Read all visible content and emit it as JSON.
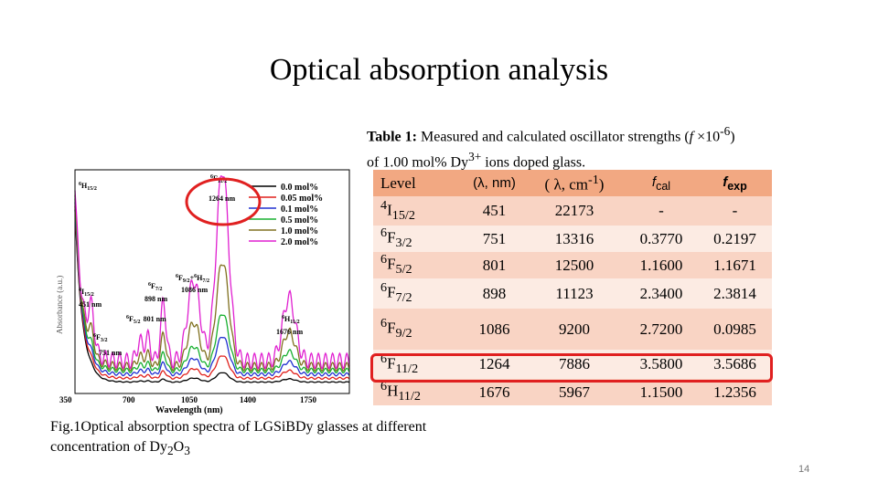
{
  "slide": {
    "title": "Optical absorption analysis",
    "page_number": "14"
  },
  "table": {
    "caption_bold": "Table 1:",
    "caption_rest": " Measured and calculated oscillator strengths (",
    "caption_f": "f",
    "caption_times": " ×10",
    "caption_exp": "-6",
    "caption_close": ")",
    "caption_line2a": "of 1.00 mol% Dy",
    "caption_line2sup": "3+",
    "caption_line2b": " ions doped glass.",
    "headers": {
      "level": "Level",
      "lambda_nm": "(λ, nm)",
      "lambda_cm_a": "( λ, cm",
      "lambda_cm_sup": "-1",
      "lambda_cm_b": ")",
      "fcal_f": "f",
      "fcal_sub": "cal",
      "fexp_f": "f",
      "fexp_sub": "exp"
    },
    "rows": [
      {
        "sup": "4",
        "term": "I",
        "sub": "15/2",
        "nm": "451",
        "cm": "22173",
        "fcal": "-",
        "fexp": "-"
      },
      {
        "sup": "6",
        "term": "F",
        "sub": "3/2",
        "nm": "751",
        "cm": "13316",
        "fcal": "0.3770",
        "fexp": "0.2197"
      },
      {
        "sup": "6",
        "term": "F",
        "sub": "5/2",
        "nm": "801",
        "cm": "12500",
        "fcal": "1.1600",
        "fexp": "1.1671"
      },
      {
        "sup": "6",
        "term": "F",
        "sub": "7/2",
        "nm": "898",
        "cm": "11123",
        "fcal": "2.3400",
        "fexp": "2.3814"
      },
      {
        "sup": "6",
        "term": "F",
        "sub": "9/2",
        "nm": "1086",
        "cm": "9200",
        "fcal": "2.7200",
        "fexp": "0.0985"
      },
      {
        "sup": "6",
        "term": "F",
        "sub": "11/2",
        "nm": "1264",
        "cm": "7886",
        "fcal": "3.5800",
        "fexp": "3.5686"
      },
      {
        "sup": "6",
        "term": "H",
        "sub": "11/2",
        "nm": "1676",
        "cm": "5967",
        "fcal": "1.1500",
        "fexp": "1.2356"
      }
    ]
  },
  "figure": {
    "caption_a": "Fig.1Optical absorption spectra of LGSiBDy glasses at different",
    "caption_b": "concentration of Dy",
    "caption_sub1": "2",
    "caption_o": "O",
    "caption_sub2": "3"
  },
  "chart_data": {
    "type": "line",
    "xlabel": "Wavelength (nm)",
    "ylabel": "Absorbance (a.u.)",
    "x_ticks": [
      "350",
      "700",
      "1050",
      "1400",
      "1750"
    ],
    "xlim": [
      350,
      2050
    ],
    "series": [
      {
        "name": "0.0 mol%",
        "color": "#000000"
      },
      {
        "name": "0.05 mol%",
        "color": "#e0201c"
      },
      {
        "name": "0.1 mol%",
        "color": "#2030d0"
      },
      {
        "name": "0.5 mol%",
        "color": "#18b030"
      },
      {
        "name": "1.0 mol%",
        "color": "#807020"
      },
      {
        "name": "2.0 mol%",
        "color": "#e020d0"
      }
    ],
    "peak_x": [
      451,
      751,
      801,
      898,
      1086,
      1264,
      1676
    ],
    "peak_heights": [
      0.2,
      0.1,
      0.12,
      0.3,
      0.42,
      1.0,
      0.33
    ],
    "annotations": {
      "h15": {
        "sup": "6",
        "t": "H",
        "sub": "15/2"
      },
      "f11": {
        "sup": "6",
        "t": "F",
        "sub": "11/2",
        "nm": "1264 nm"
      },
      "f92": {
        "sup": "6",
        "t": "F",
        "sub": "9/2",
        "plus": "+",
        "sup2": "6",
        "t2": "H",
        "sub2": "7/2",
        "nm": "1086 nm"
      },
      "f72": {
        "sup": "6",
        "t": "F",
        "sub": "7/2",
        "nm": "898 nm"
      },
      "f52": {
        "sup": "6",
        "t": "F",
        "sub": "5/2",
        "nm": "801 nm"
      },
      "f32": {
        "sup": "6",
        "t": "F",
        "sub": "3/2",
        "nm": "751 nm"
      },
      "i152": {
        "sup": "4",
        "t": "I",
        "sub": "15/2",
        "nm": "451 nm"
      },
      "h112": {
        "sup": "6",
        "t": "H",
        "sub": "11/2",
        "nm": "1676 nm"
      }
    }
  }
}
